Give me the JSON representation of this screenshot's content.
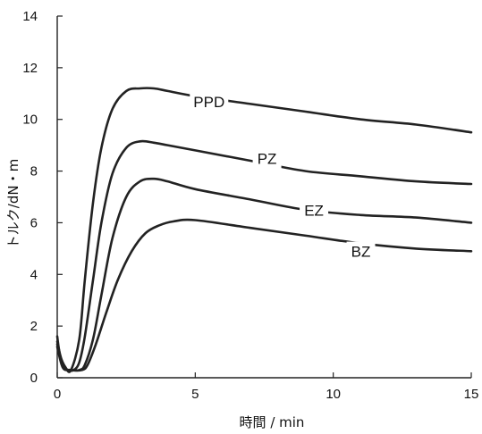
{
  "chart_data": {
    "type": "line",
    "title": "",
    "xlabel": "時間 / min",
    "ylabel": "トルク/dN・m",
    "xlim": [
      0,
      15
    ],
    "ylim": [
      0,
      14
    ],
    "xticks": [
      0,
      5,
      10,
      15
    ],
    "yticks": [
      0,
      2,
      4,
      6,
      8,
      10,
      12,
      14
    ],
    "xtick_labels": [
      "0",
      "5",
      "10",
      "15"
    ],
    "ytick_labels": [
      "0",
      "2",
      "4",
      "6",
      "8",
      "10",
      "12",
      "14"
    ],
    "grid": false,
    "legend": "none",
    "line_color": "#222222",
    "series": [
      {
        "name": "PPD",
        "x": [
          0,
          0.1,
          0.3,
          0.5,
          0.8,
          1.0,
          1.3,
          1.6,
          2.0,
          2.5,
          3.0,
          3.5,
          4.0,
          5.0,
          7.0,
          9.0,
          11.0,
          13.0,
          15.0
        ],
        "y": [
          1.6,
          0.9,
          0.4,
          0.3,
          1.5,
          3.8,
          6.8,
          8.9,
          10.4,
          11.1,
          11.2,
          11.2,
          11.1,
          10.9,
          10.6,
          10.3,
          10.0,
          9.8,
          9.5
        ]
      },
      {
        "name": "PZ",
        "x": [
          0,
          0.2,
          0.4,
          0.6,
          0.8,
          1.0,
          1.3,
          1.6,
          2.0,
          2.5,
          3.0,
          3.5,
          4.0,
          5.0,
          7.0,
          9.0,
          11.0,
          13.0,
          15.0
        ],
        "y": [
          1.4,
          0.5,
          0.3,
          0.3,
          0.6,
          1.6,
          3.8,
          6.0,
          7.9,
          8.9,
          9.15,
          9.1,
          9.0,
          8.8,
          8.4,
          8.0,
          7.8,
          7.6,
          7.5
        ]
      },
      {
        "name": "EZ",
        "x": [
          0,
          0.2,
          0.5,
          0.8,
          1.0,
          1.3,
          1.6,
          2.0,
          2.5,
          3.0,
          3.5,
          4.0,
          5.0,
          7.0,
          9.0,
          11.0,
          13.0,
          15.0
        ],
        "y": [
          1.3,
          0.4,
          0.3,
          0.3,
          0.5,
          1.5,
          3.2,
          5.4,
          7.0,
          7.6,
          7.7,
          7.6,
          7.3,
          6.9,
          6.5,
          6.3,
          6.2,
          6.0
        ]
      },
      {
        "name": "BZ",
        "x": [
          0,
          0.2,
          0.5,
          0.9,
          1.1,
          1.4,
          1.8,
          2.2,
          2.7,
          3.2,
          3.7,
          4.2,
          5.0,
          7.0,
          9.0,
          11.0,
          13.0,
          15.0
        ],
        "y": [
          1.2,
          0.4,
          0.3,
          0.3,
          0.5,
          1.3,
          2.6,
          3.8,
          4.9,
          5.6,
          5.9,
          6.05,
          6.1,
          5.8,
          5.5,
          5.2,
          5.0,
          4.9
        ]
      }
    ]
  },
  "series_labels": [
    {
      "text": "PPD",
      "x": 5.5,
      "y": 10.55
    },
    {
      "text": "PZ",
      "x": 7.6,
      "y": 8.35
    },
    {
      "text": "EZ",
      "x": 9.3,
      "y": 6.35
    },
    {
      "text": "BZ",
      "x": 11.0,
      "y": 4.75
    }
  ]
}
